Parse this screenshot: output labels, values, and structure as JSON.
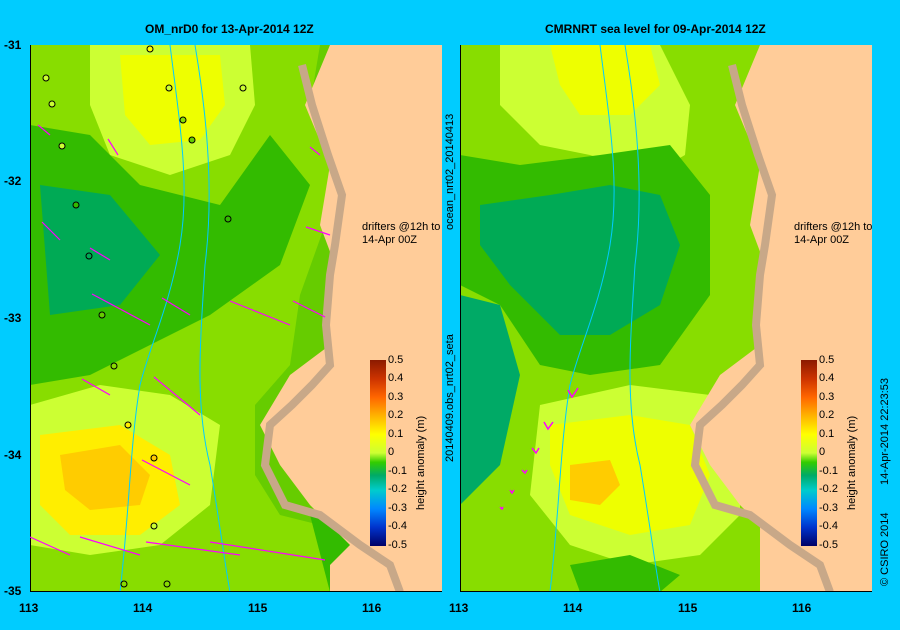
{
  "left_panel": {
    "title": "OM_nrD0 for 13-Apr-2014 12Z",
    "drifters_label_line1": "drifters @12h to",
    "drifters_label_line2": "14-Apr 00Z"
  },
  "right_panel": {
    "title": "CMRNRT sea level  for 09-Apr-2014 12Z",
    "drifters_label_line1": "drifters @12h to",
    "drifters_label_line2": "14-Apr 00Z",
    "side_label_top": "ocean_nrt02_20140413",
    "side_label_bottom": "20140409.obs_nrt02_seta"
  },
  "y_axis": {
    "labels": [
      "-31",
      "-32",
      "-33",
      "-34",
      "-35"
    ]
  },
  "x_axis": {
    "labels": [
      "113",
      "114",
      "115",
      "116"
    ]
  },
  "colorbar": {
    "label": "height anomaly (m)",
    "ticks": [
      "0.5",
      "0.4",
      "0.3",
      "0.2",
      "0.1",
      "0",
      "-0.1",
      "-0.2",
      "-0.3",
      "-0.4",
      "-0.5"
    ],
    "colors": [
      "#8B1A00",
      "#FF6600",
      "#FFFF00",
      "#33CC00",
      "#00CCCC",
      "#0033CC",
      "#000066"
    ]
  },
  "credit": {
    "copyright": "© CSIRO 2014",
    "timestamp": "14-Apr-2014 22:23:53"
  }
}
